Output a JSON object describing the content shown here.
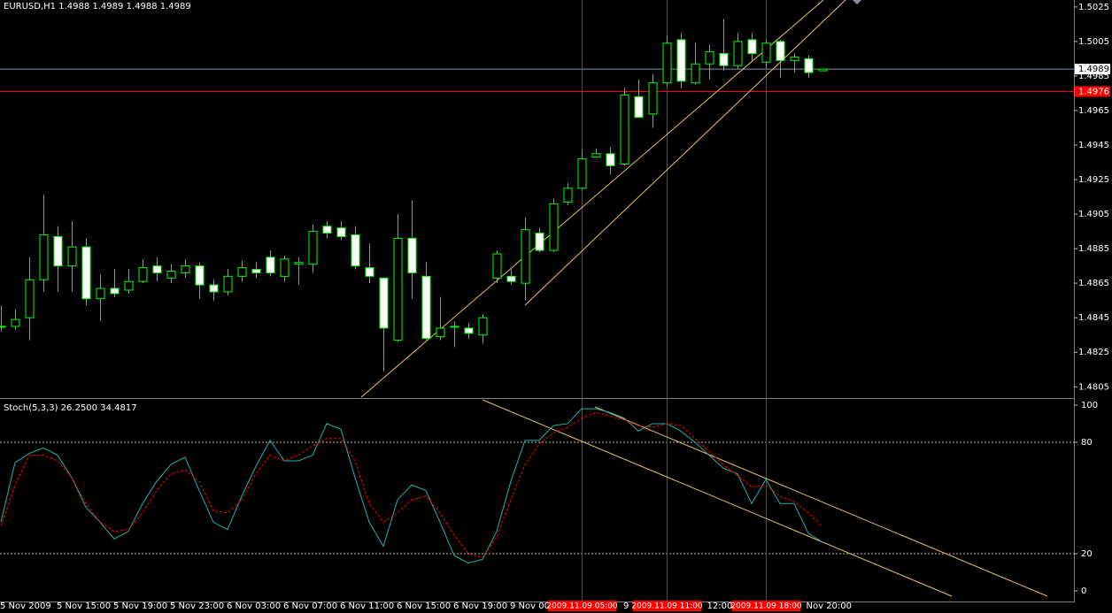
{
  "chart_data": [
    {
      "type": "candlestick",
      "title": "EURUSD,H1",
      "categories": [
        "5 Nov 2009",
        null,
        null,
        null,
        "5 Nov 15:00",
        null,
        null,
        null,
        "5 Nov 19:00",
        null,
        null,
        null,
        "5 Nov 23:00",
        null,
        null,
        null,
        "6 Nov 03:00",
        null,
        null,
        null,
        "6 Nov 07:00",
        null,
        null,
        null,
        "6 Nov 11:00",
        null,
        null,
        null,
        "6 Nov 15:00",
        null,
        null,
        null,
        "6 Nov 19:00",
        null,
        null,
        null,
        "9 Nov 00:",
        null,
        null,
        null,
        null,
        null,
        null,
        null,
        "9",
        null,
        null,
        null,
        "12:00",
        null,
        null,
        null,
        null,
        null,
        null,
        null,
        "Nov 20:00",
        null,
        null
      ],
      "open": [
        1.484,
        1.484,
        1.4845,
        1.4867,
        1.4892,
        1.4875,
        1.4886,
        1.4856,
        1.4862,
        1.4861,
        1.4866,
        1.4875,
        1.4868,
        1.4871,
        1.4875,
        1.4864,
        1.486,
        1.4869,
        1.4873,
        1.488,
        1.4869,
        1.4876,
        1.4876,
        1.4898,
        1.4897,
        1.4893,
        1.4874,
        1.4868,
        1.4832,
        1.4891,
        1.4869,
        1.4834,
        1.484,
        1.4839,
        1.4835,
        1.4868,
        1.4869,
        1.4865,
        1.4894,
        1.4884,
        1.4912,
        1.492,
        1.4938,
        1.494,
        1.4934,
        1.4973,
        1.4963,
        1.4981,
        1.5006,
        1.4981,
        1.4992,
        1.4998,
        1.4991,
        1.5006,
        1.4993,
        1.5005,
        1.4994,
        1.4995,
        1.4988
      ],
      "high": [
        1.4852,
        1.485,
        1.488,
        1.4916,
        1.4898,
        1.4901,
        1.4891,
        1.487,
        1.4873,
        1.4873,
        1.4879,
        1.488,
        1.4876,
        1.4879,
        1.4877,
        1.4867,
        1.4873,
        1.4878,
        1.4877,
        1.4884,
        1.4881,
        1.488,
        1.4899,
        1.4901,
        1.4901,
        1.4898,
        1.4888,
        1.4868,
        1.4905,
        1.4913,
        1.4877,
        1.4857,
        1.4843,
        1.4842,
        1.4847,
        1.4884,
        1.4873,
        1.4903,
        1.4897,
        1.4914,
        1.4923,
        1.4942,
        1.4943,
        1.4944,
        1.4978,
        1.4983,
        1.4986,
        1.5008,
        1.501,
        1.5004,
        1.5003,
        1.5018,
        1.501,
        1.501,
        1.5006,
        1.5006,
        1.4998,
        1.4997,
        1.4989
      ],
      "low": [
        1.4837,
        1.4838,
        1.4832,
        1.486,
        1.486,
        1.486,
        1.4852,
        1.4843,
        1.4857,
        1.4859,
        1.4865,
        1.4866,
        1.4865,
        1.4868,
        1.4856,
        1.4855,
        1.4858,
        1.4866,
        1.4868,
        1.4869,
        1.4866,
        1.4864,
        1.4871,
        1.4891,
        1.489,
        1.4873,
        1.4865,
        1.4814,
        1.4831,
        1.4856,
        1.4832,
        1.4832,
        1.4828,
        1.4833,
        1.483,
        1.4865,
        1.4864,
        1.4855,
        1.4883,
        1.4883,
        1.491,
        1.4919,
        1.4938,
        1.4928,
        1.4933,
        1.4961,
        1.4955,
        1.4979,
        1.4978,
        1.498,
        1.4983,
        1.4988,
        1.4989,
        1.4993,
        1.4989,
        1.4984,
        1.4987,
        1.4984,
        1.4988
      ],
      "close": [
        1.484,
        1.4844,
        1.4867,
        1.4893,
        1.4875,
        1.4886,
        1.4856,
        1.4862,
        1.4859,
        1.4866,
        1.4874,
        1.4871,
        1.4872,
        1.4875,
        1.4864,
        1.486,
        1.4869,
        1.4874,
        1.4871,
        1.4871,
        1.4879,
        1.4877,
        1.4895,
        1.4894,
        1.4892,
        1.4875,
        1.4869,
        1.4839,
        1.4891,
        1.4871,
        1.4833,
        1.4839,
        1.484,
        1.4836,
        1.4845,
        1.4882,
        1.4866,
        1.4896,
        1.4884,
        1.4911,
        1.492,
        1.4937,
        1.494,
        1.4933,
        1.4974,
        1.4961,
        1.4981,
        1.5004,
        1.4982,
        1.4992,
        1.4999,
        1.4991,
        1.5005,
        1.4998,
        1.5004,
        1.4994,
        1.4996,
        1.4987,
        1.4989
      ],
      "up_color": "#000000",
      "down_color": "#ffffff",
      "wick_color": "#00ff00",
      "ylim": [
        1.4799,
        1.5029
      ],
      "yticks": [
        1.5025,
        1.5005,
        1.4985,
        1.4965,
        1.4945,
        1.4925,
        1.4905,
        1.4885,
        1.4865,
        1.4845,
        1.4825,
        1.4805
      ],
      "hlines": [
        {
          "value": 1.4989,
          "color": "#7f8fa6",
          "label_background": "#ffffff",
          "label_color": "#000000"
        },
        {
          "value": 1.4976,
          "color": "#ff0000",
          "label_background": "#ff0000",
          "label_color": "#ffffff"
        }
      ],
      "vlines": [
        {
          "at": 41,
          "label": "2009.11.09 05:00"
        },
        {
          "at": 47,
          "label": "2009.11.09 11:00"
        },
        {
          "at": 54,
          "label": "2009.11.09 18:00"
        }
      ],
      "vline_color": "#ff0000"
    },
    {
      "type": "line",
      "title": "Stoch(5,3,3)",
      "series": [
        {
          "color": "#20b2aa",
          "dash": false,
          "values": [
            37,
            69,
            74,
            77,
            73,
            61,
            45,
            37,
            28,
            32,
            47,
            59,
            68,
            72,
            54,
            37,
            33,
            51,
            67,
            81,
            70,
            70,
            73,
            90,
            87,
            61,
            37,
            24,
            49,
            57,
            54,
            37,
            19,
            15,
            17,
            32,
            59,
            81,
            81,
            89,
            90,
            98,
            98,
            96,
            93,
            86,
            90,
            90,
            86,
            80,
            73,
            66,
            63,
            47,
            60,
            47,
            47,
            31,
            26.25
          ],
          "value_labels": [
            null,
            null,
            null,
            null,
            null,
            null,
            null,
            null,
            null,
            null,
            null,
            null,
            null,
            null,
            null,
            null,
            null,
            null,
            null,
            null,
            null,
            null,
            null,
            null,
            null,
            null,
            null,
            null,
            null,
            null,
            null,
            null,
            null,
            null,
            null,
            null,
            null,
            null,
            null,
            null,
            null,
            null,
            null,
            null,
            null,
            null,
            null,
            null,
            null,
            null,
            null,
            null,
            null,
            null,
            null,
            null,
            null,
            null,
            "26.2500"
          ]
        },
        {
          "color": "#ff0000",
          "dash": true,
          "values": [
            35,
            57,
            73,
            73,
            70,
            61,
            47,
            37,
            32,
            33,
            42,
            54,
            63,
            65,
            59,
            43,
            42,
            49,
            63,
            73,
            70,
            73,
            78,
            82,
            82,
            70,
            47,
            37,
            42,
            49,
            51,
            42,
            30,
            20,
            18,
            29,
            49,
            68,
            79,
            85,
            88,
            93,
            96,
            94,
            92,
            89,
            88,
            90,
            89,
            82,
            75,
            68,
            62,
            56,
            57,
            51,
            48,
            42,
            34.4817
          ]
        }
      ],
      "ylim": [
        -5.7,
        103.3
      ],
      "yticks": [
        100,
        80,
        20,
        0
      ],
      "levels": [
        80,
        20
      ]
    }
  ]
}
